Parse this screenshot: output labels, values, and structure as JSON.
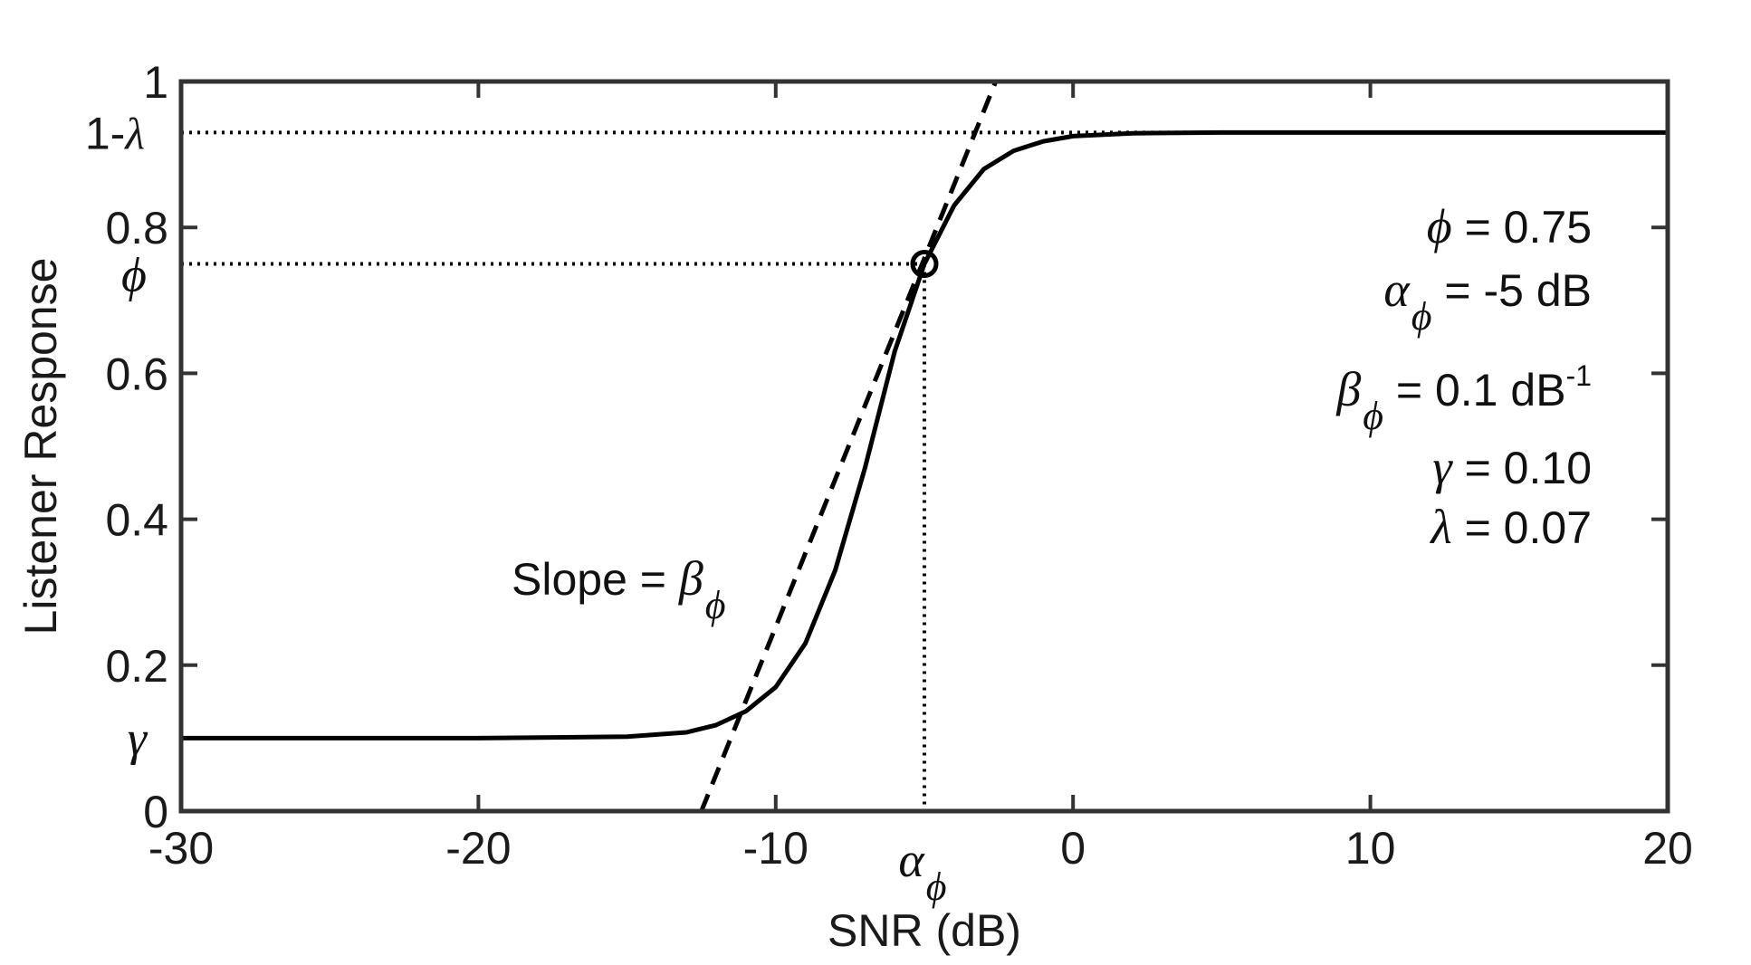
{
  "chart_data": {
    "type": "line",
    "title": "",
    "xlabel": "SNR (dB)",
    "ylabel": "Listener Response",
    "xlim": [
      -30,
      20
    ],
    "ylim": [
      0,
      1
    ],
    "x_ticks": [
      -30,
      -20,
      -10,
      0,
      10,
      20
    ],
    "x_tick_labels": [
      "-30",
      "-20",
      "-10",
      "0",
      "10",
      "20"
    ],
    "y_ticks": [
      0,
      0.2,
      0.4,
      0.6,
      0.8,
      1
    ],
    "y_tick_labels": [
      "0",
      "0.2",
      "0.4",
      "0.6",
      "0.8",
      "1"
    ],
    "grid": false,
    "parameters": {
      "phi": 0.75,
      "alpha_phi_db": -5,
      "beta_phi": 0.1,
      "gamma": 0.1,
      "lambda": 0.07
    },
    "series": [
      {
        "style": "solid",
        "x": [
          -30,
          -20,
          -15,
          -13,
          -12,
          -11,
          -10,
          -9,
          -8,
          -7,
          -6,
          -5,
          -4,
          -3,
          -2,
          -1,
          0,
          2,
          5,
          10,
          20
        ],
        "y": [
          0.1,
          0.1,
          0.102,
          0.108,
          0.118,
          0.137,
          0.17,
          0.23,
          0.33,
          0.47,
          0.63,
          0.75,
          0.83,
          0.88,
          0.905,
          0.918,
          0.925,
          0.929,
          0.93,
          0.93,
          0.93
        ]
      },
      {
        "style": "dashed",
        "x": [
          -12.5,
          -2.6
        ],
        "y": [
          0.0,
          1.0
        ]
      }
    ],
    "reference_lines": {
      "horizontal": [
        0.93,
        0.75
      ],
      "vertical": [
        -5
      ]
    },
    "marker_point": {
      "x": -5,
      "y": 0.75
    }
  },
  "labels": {
    "y_upper_asymptote": {
      "prefix": "1-",
      "symbol": "λ"
    },
    "y_phi": "ϕ",
    "y_gamma": "γ",
    "x_alpha": {
      "symbol": "α",
      "sub": "ϕ"
    },
    "slope": {
      "text": "Slope = ",
      "symbol": "β",
      "sub": "ϕ"
    },
    "legend": {
      "phi": {
        "symbol": "ϕ",
        "value": " = 0.75"
      },
      "alpha": {
        "symbol": "α",
        "sub": "ϕ",
        "value": " = -5 dB"
      },
      "beta": {
        "symbol": "β",
        "sub": "ϕ",
        "value": " = 0.1 dB",
        "sup": "-1"
      },
      "gamma": {
        "symbol": "γ",
        "value": " = 0.10"
      },
      "lambda": {
        "symbol": "λ",
        "value": " = 0.07"
      }
    }
  },
  "colors": {
    "line": "#000000",
    "axis": "#333333",
    "text": "#1a1a1a",
    "background": "#ffffff"
  }
}
